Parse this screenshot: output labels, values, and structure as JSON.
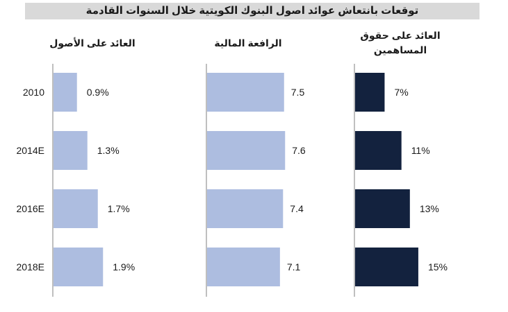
{
  "chart_data": {
    "type": "bar",
    "orientation": "horizontal",
    "title": "توقعات بانتعاش عوائد اصول البنوك الكويتية خلال السنوات القادمة",
    "categories": [
      "2010",
      "2014E",
      "2016E",
      "2018E"
    ],
    "panels": [
      {
        "name": "العائد على الأصول",
        "values": [
          0.9,
          1.3,
          1.7,
          1.9
        ],
        "labels": [
          "0.9%",
          "1.3%",
          "1.7%",
          "1.9%"
        ],
        "color": "#adbde0",
        "xlim": [
          0,
          3.2
        ]
      },
      {
        "name": "الرافعة المالية",
        "values": [
          7.5,
          7.6,
          7.4,
          7.1
        ],
        "labels": [
          "7.5",
          "7.6",
          "7.4",
          "7.1"
        ],
        "color": "#adbde0",
        "xlim": [
          0,
          9.75
        ]
      },
      {
        "name": "العائد على حقوق المساهمين",
        "name_lines": [
          "العائد على حقوق",
          "المساهمين"
        ],
        "values": [
          7,
          11,
          13,
          15
        ],
        "labels": [
          "7%",
          "11%",
          "13%",
          "15%"
        ],
        "color": "#13223e",
        "xlim": [
          0,
          25.6
        ]
      }
    ],
    "legend": "none",
    "grid": false
  },
  "colors": {
    "title_background": "#d9d9d9",
    "axis_line": "#7f7f7f",
    "text": "#1a1a1a"
  }
}
